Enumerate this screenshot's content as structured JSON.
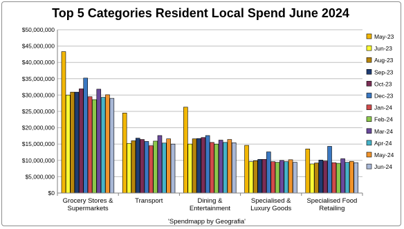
{
  "chart_data": {
    "type": "bar",
    "title": "Top 5 Categories Resident Local Spend June 2024",
    "xlabel": "'Spendmapp by Geografia'",
    "ylabel": "",
    "ylim": [
      0,
      50000000
    ],
    "yticks": [
      "$0",
      "$5,000,000",
      "$10,000,000",
      "$15,000,000",
      "$20,000,000",
      "$25,000,000",
      "$30,000,000",
      "$35,000,000",
      "$40,000,000",
      "$45,000,000",
      "$50,000,000"
    ],
    "categories": [
      [
        "Grocery Stores &",
        "Supermarkets"
      ],
      [
        "Transport"
      ],
      [
        "Dining &",
        "Entertainment"
      ],
      [
        "Specialised &",
        "Luxury Goods"
      ],
      [
        "Specialised Food",
        "Retailing"
      ]
    ],
    "legend_position": "right",
    "grid": true,
    "series": [
      {
        "name": "May-23",
        "color": "#f2b705",
        "values": [
          43300000,
          24500000,
          26300000,
          14600000,
          13500000
        ]
      },
      {
        "name": "Jun-23",
        "color": "#ffff33",
        "values": [
          30000000,
          15200000,
          15000000,
          9600000,
          8900000
        ]
      },
      {
        "name": "Aug-23",
        "color": "#b8860b",
        "values": [
          30900000,
          16000000,
          16600000,
          9900000,
          9200000
        ]
      },
      {
        "name": "Sep-23",
        "color": "#1f3d73",
        "values": [
          30900000,
          16800000,
          16700000,
          10300000,
          10100000
        ]
      },
      {
        "name": "Oct-23",
        "color": "#7b2d55",
        "values": [
          31900000,
          16400000,
          17000000,
          10300000,
          9800000
        ]
      },
      {
        "name": "Dec-23",
        "color": "#3a78c2",
        "values": [
          35200000,
          15800000,
          17600000,
          12600000,
          14300000
        ]
      },
      {
        "name": "Jan-24",
        "color": "#d14b4b",
        "values": [
          29500000,
          14500000,
          15500000,
          9600000,
          9300000
        ]
      },
      {
        "name": "Feb-24",
        "color": "#8cc84b",
        "values": [
          28600000,
          15900000,
          15000000,
          9400000,
          9100000
        ]
      },
      {
        "name": "Mar-24",
        "color": "#6a4a9c",
        "values": [
          31800000,
          17600000,
          16200000,
          10000000,
          10500000
        ]
      },
      {
        "name": "Apr-24",
        "color": "#46b3c8",
        "values": [
          29300000,
          15300000,
          15500000,
          9600000,
          9400000
        ]
      },
      {
        "name": "May-24",
        "color": "#f0932b",
        "values": [
          30100000,
          16600000,
          16400000,
          10200000,
          9700000
        ]
      },
      {
        "name": "Jun-24",
        "color": "#a9b8d6",
        "values": [
          29000000,
          15000000,
          15400000,
          9400000,
          9300000
        ]
      }
    ]
  }
}
